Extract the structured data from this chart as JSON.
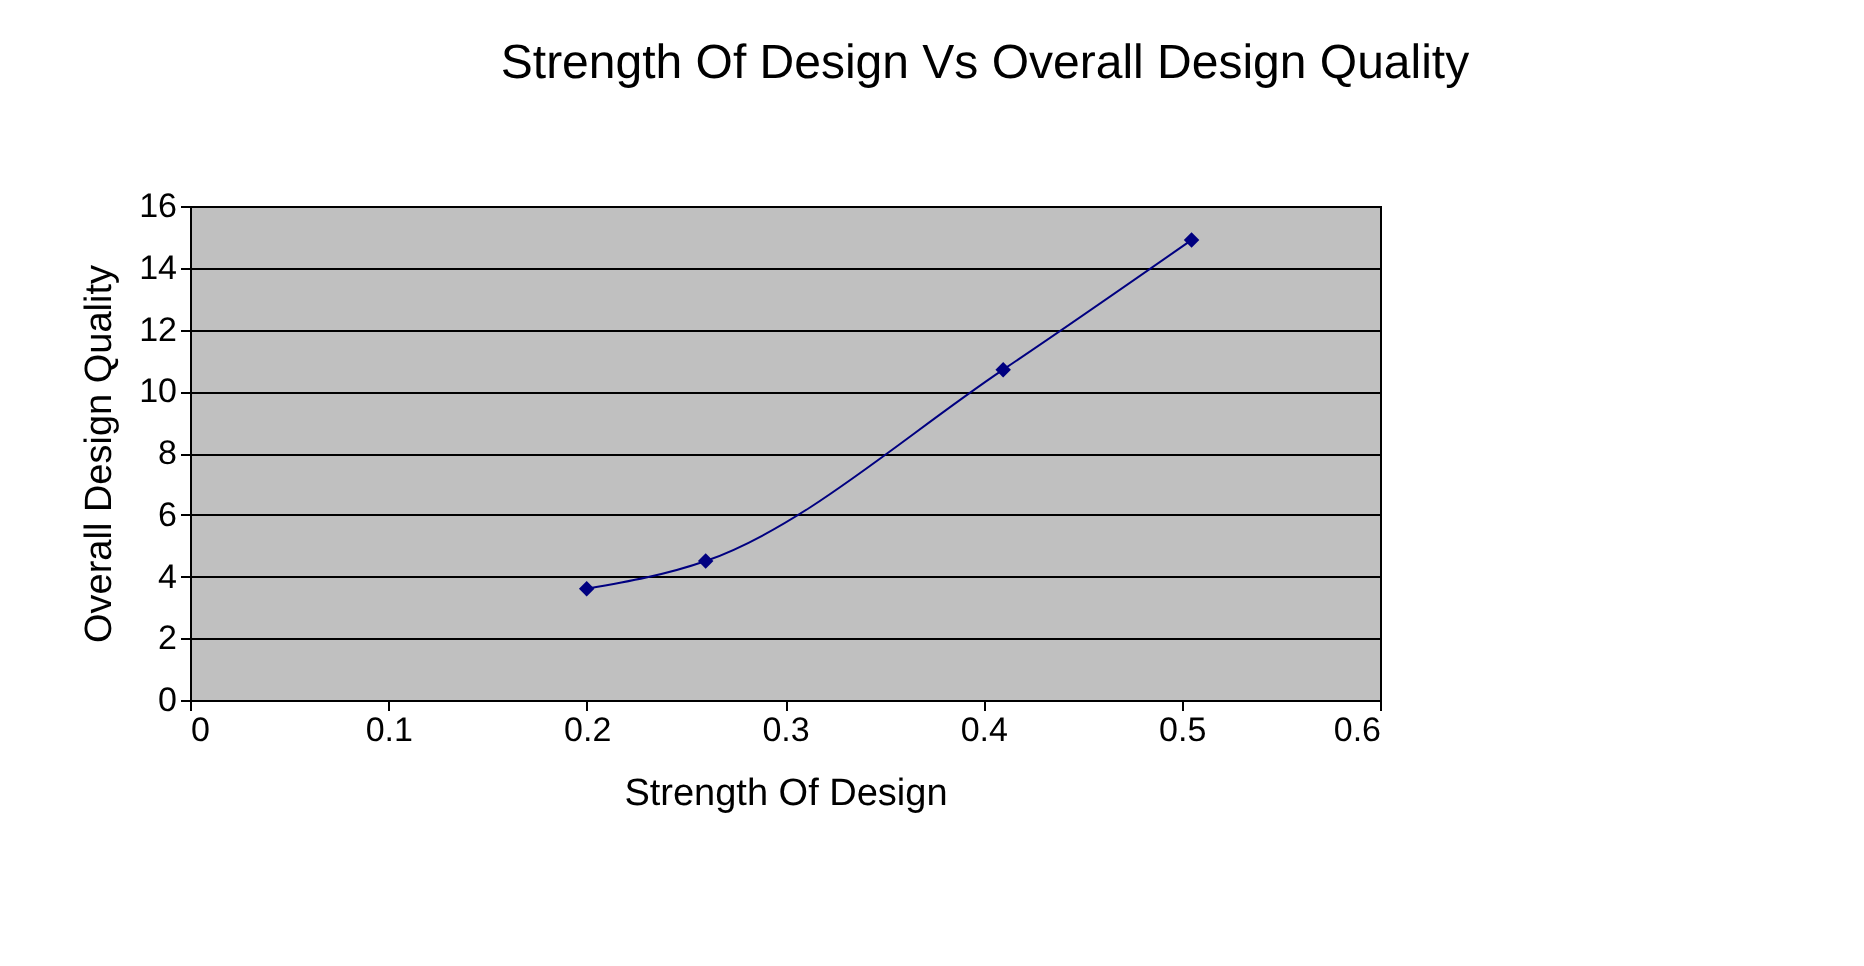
{
  "chart_data": {
    "type": "line",
    "title": "Strength Of Design Vs Overall Design Quality",
    "xlabel": "Strength Of Design",
    "ylabel": "Overall Design Quality",
    "x": [
      0.2,
      0.26,
      0.41,
      0.505
    ],
    "series": [
      {
        "color": "#000080",
        "values": [
          3.6,
          4.5,
          10.7,
          14.9
        ]
      }
    ],
    "xlim": [
      0,
      0.6
    ],
    "xticks": [
      0,
      0.1,
      0.2,
      0.3,
      0.4,
      0.5,
      0.6
    ],
    "ylim": [
      0,
      16
    ],
    "yticks": [
      0,
      2,
      4,
      6,
      8,
      10,
      12,
      14,
      16
    ],
    "grid": "y",
    "marker": "diamond"
  }
}
